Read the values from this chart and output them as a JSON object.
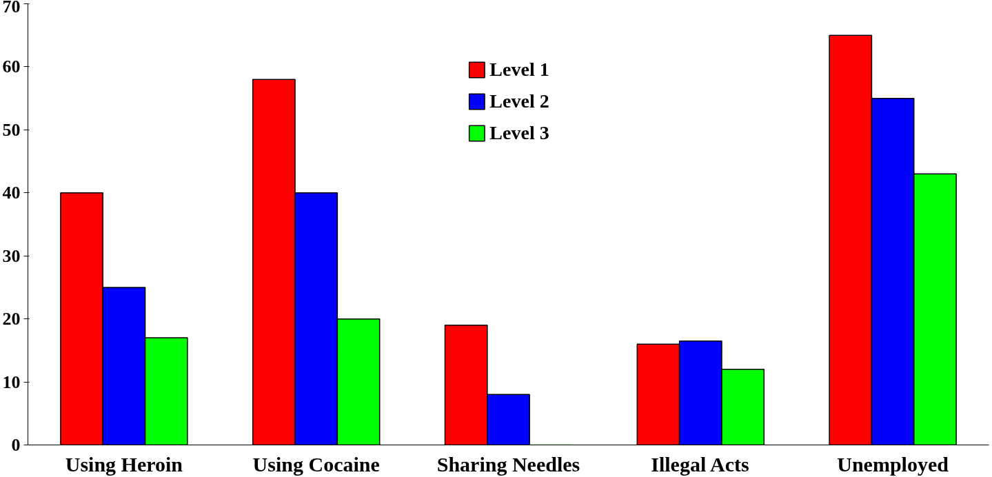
{
  "chart_data": {
    "type": "bar",
    "categories": [
      "Using Heroin",
      "Using Cocaine",
      "Sharing Needles",
      "Illegal Acts",
      "Unemployed"
    ],
    "series": [
      {
        "name": "Level 1",
        "color": "#ff0000",
        "values": [
          40,
          58,
          19,
          16,
          65
        ]
      },
      {
        "name": "Level 2",
        "color": "#0000ff",
        "values": [
          25,
          40,
          8,
          16.5,
          55
        ]
      },
      {
        "name": "Level 3",
        "color": "#00ff00",
        "values": [
          17,
          20,
          0,
          12,
          43
        ]
      }
    ],
    "ylim": [
      0,
      70
    ],
    "yticks": [
      0,
      10,
      20,
      30,
      40,
      50,
      60,
      70
    ],
    "grid": false,
    "legend": "top"
  }
}
